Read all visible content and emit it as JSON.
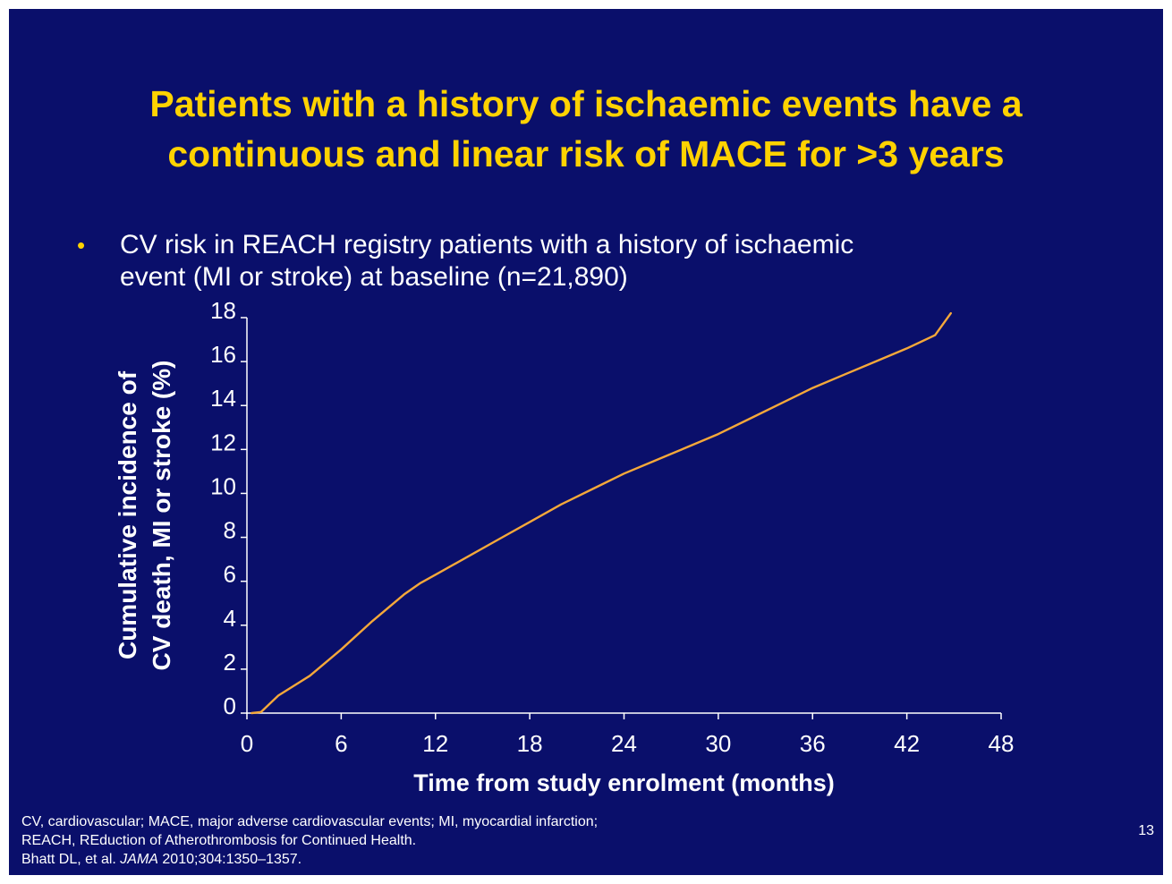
{
  "slide": {
    "title_lines": [
      "Patients with a history of ischaemic events have a",
      "continuous and linear risk of MACE for >3 years"
    ],
    "bullet_marker": "•",
    "bullet_lines": [
      "CV risk in REACH registry patients with a history of ischaemic",
      "event (MI or stroke) at baseline (n=21,890)"
    ],
    "footnotes": {
      "line1": "CV, cardiovascular; MACE, major adverse cardiovascular events; MI, myocardial infarction;",
      "line2": "REACH, REduction of Atherothrombosis for Continued Health.",
      "citation_prefix": "Bhatt DL, et al. ",
      "citation_journal": "JAMA",
      "citation_suffix": " 2010;304:1350–1357."
    },
    "page_number": "13"
  },
  "colors": {
    "background": "#0a0f6b",
    "title": "#ffd200",
    "text": "#ffffff",
    "line": "#f5a83a"
  },
  "chart_data": {
    "type": "line",
    "xlabel": "Time from study enrolment (months)",
    "ylabel_lines": [
      "Cumulative incidence of",
      "CV death, MI or stroke (%)"
    ],
    "xlim": [
      0,
      48
    ],
    "ylim": [
      0,
      18
    ],
    "xticks": [
      "0",
      "6",
      "12",
      "18",
      "24",
      "30",
      "36",
      "42",
      "48"
    ],
    "yticks": [
      "0",
      "2",
      "4",
      "6",
      "8",
      "10",
      "12",
      "14",
      "16",
      "18"
    ],
    "grid": false,
    "series": [
      {
        "x": [
          0.3,
          0.9,
          2,
          4,
          6,
          8,
          10,
          11,
          12,
          14,
          16,
          18,
          20,
          22,
          24,
          26,
          28,
          30,
          32,
          34,
          36,
          38,
          40,
          42,
          43.8,
          44.8
        ],
        "y": [
          0,
          0.05,
          0.8,
          1.7,
          2.9,
          4.2,
          5.4,
          5.9,
          6.3,
          7.1,
          7.9,
          8.7,
          9.5,
          10.2,
          10.9,
          11.5,
          12.1,
          12.7,
          13.4,
          14.1,
          14.8,
          15.4,
          16.0,
          16.6,
          17.2,
          18.2
        ]
      }
    ]
  }
}
